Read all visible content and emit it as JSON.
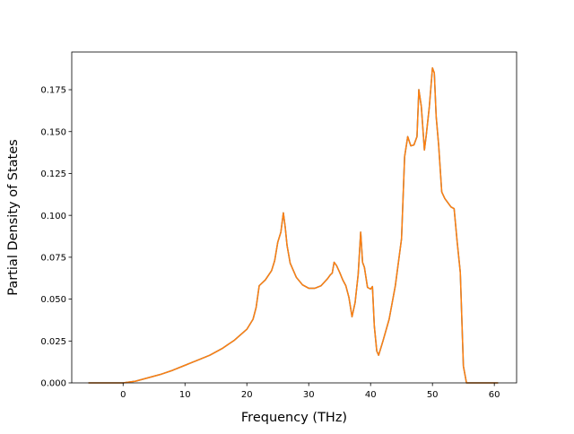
{
  "chart_data": {
    "type": "line",
    "title": "",
    "xlabel": "Frequency (THz)",
    "ylabel": "Partial Density of States",
    "xlim": [
      -8.3,
      63.6
    ],
    "ylim": [
      0,
      0.1975
    ],
    "xticks": [
      0,
      10,
      20,
      30,
      40,
      50,
      60
    ],
    "yticks": [
      0.0,
      0.025,
      0.05,
      0.075,
      0.1,
      0.125,
      0.15,
      0.175
    ],
    "ytick_format_decimals": 3,
    "grid": false,
    "legend": "none",
    "series": [
      {
        "color": "#1f77b4",
        "x": [
          -5.5,
          -3,
          0,
          2,
          4,
          6,
          8,
          10,
          11,
          12,
          14,
          16,
          18,
          20,
          21,
          21.5,
          22,
          23,
          24,
          24.5,
          25,
          25.5,
          25.9,
          26.2,
          26.5,
          27,
          28,
          29,
          30,
          31,
          32,
          33,
          33.5,
          33.8,
          34.1,
          34.5,
          35,
          35.5,
          36,
          36.5,
          37,
          37.5,
          38,
          38.4,
          38.7,
          39,
          39.5,
          40,
          40.3,
          40.6,
          41,
          41.3,
          42,
          43,
          44,
          45,
          45.5,
          46,
          46.5,
          47,
          47.5,
          47.8,
          48.2,
          48.7,
          49,
          49.5,
          50,
          50.3,
          50.6,
          51,
          51.5,
          52,
          53,
          53.5,
          54,
          54.5,
          55,
          55.5,
          58,
          60.5
        ],
        "y": [
          0,
          0,
          0,
          0.001,
          0.003,
          0.005,
          0.0075,
          0.0105,
          0.012,
          0.0135,
          0.0165,
          0.0205,
          0.0255,
          0.032,
          0.038,
          0.045,
          0.058,
          0.0615,
          0.067,
          0.073,
          0.084,
          0.09,
          0.1015,
          0.093,
          0.082,
          0.0715,
          0.063,
          0.0585,
          0.0565,
          0.0565,
          0.058,
          0.062,
          0.0645,
          0.0655,
          0.072,
          0.07,
          0.066,
          0.0615,
          0.058,
          0.051,
          0.0395,
          0.048,
          0.065,
          0.09,
          0.072,
          0.069,
          0.057,
          0.056,
          0.0575,
          0.034,
          0.019,
          0.0165,
          0.025,
          0.038,
          0.058,
          0.086,
          0.135,
          0.147,
          0.1415,
          0.142,
          0.147,
          0.175,
          0.165,
          0.139,
          0.148,
          0.165,
          0.188,
          0.185,
          0.159,
          0.142,
          0.114,
          0.11,
          0.105,
          0.104,
          0.084,
          0.066,
          0.01,
          0,
          0,
          0
        ]
      },
      {
        "color": "#ff7f0e",
        "x": [
          -5.5,
          -3,
          0,
          2,
          4,
          6,
          8,
          10,
          11,
          12,
          14,
          16,
          18,
          20,
          21,
          21.5,
          22,
          23,
          24,
          24.5,
          25,
          25.5,
          25.9,
          26.2,
          26.5,
          27,
          28,
          29,
          30,
          31,
          32,
          33,
          33.5,
          33.8,
          34.1,
          34.5,
          35,
          35.5,
          36,
          36.5,
          37,
          37.5,
          38,
          38.4,
          38.7,
          39,
          39.5,
          40,
          40.3,
          40.6,
          41,
          41.3,
          42,
          43,
          44,
          45,
          45.5,
          46,
          46.5,
          47,
          47.5,
          47.8,
          48.2,
          48.7,
          49,
          49.5,
          50,
          50.3,
          50.6,
          51,
          51.5,
          52,
          53,
          53.5,
          54,
          54.5,
          55,
          55.5,
          58,
          60.5
        ],
        "y": [
          0,
          0,
          0,
          0.001,
          0.003,
          0.005,
          0.0075,
          0.0105,
          0.012,
          0.0135,
          0.0165,
          0.0205,
          0.0255,
          0.032,
          0.038,
          0.045,
          0.058,
          0.0615,
          0.067,
          0.073,
          0.084,
          0.09,
          0.1015,
          0.093,
          0.082,
          0.0715,
          0.063,
          0.0585,
          0.0565,
          0.0565,
          0.058,
          0.062,
          0.0645,
          0.0655,
          0.072,
          0.07,
          0.066,
          0.0615,
          0.058,
          0.051,
          0.0395,
          0.048,
          0.065,
          0.09,
          0.072,
          0.069,
          0.057,
          0.056,
          0.0575,
          0.034,
          0.019,
          0.0165,
          0.025,
          0.038,
          0.058,
          0.086,
          0.135,
          0.147,
          0.1415,
          0.142,
          0.147,
          0.175,
          0.165,
          0.139,
          0.148,
          0.165,
          0.188,
          0.185,
          0.159,
          0.142,
          0.114,
          0.11,
          0.105,
          0.104,
          0.084,
          0.066,
          0.01,
          0,
          0,
          0
        ]
      }
    ]
  }
}
